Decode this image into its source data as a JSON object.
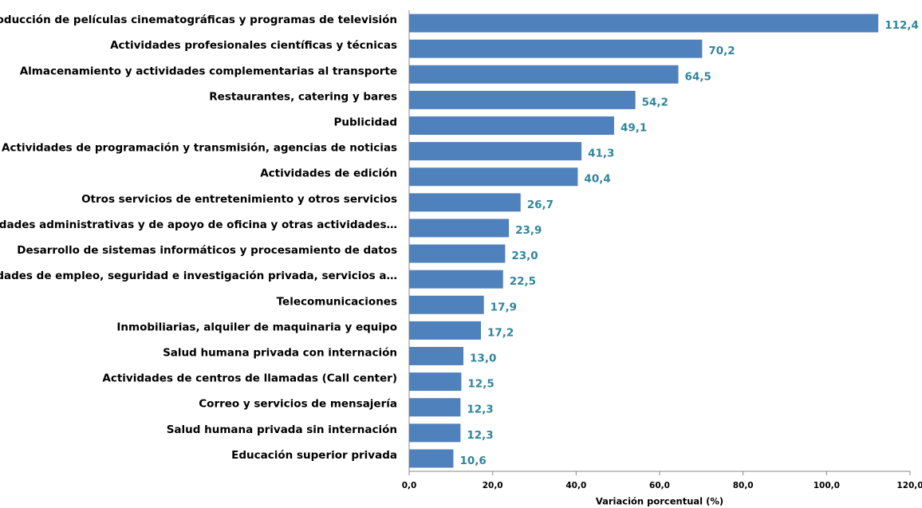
{
  "chart_data": {
    "type": "barh",
    "x_label": "Variación porcentual (%)",
    "categories": [
      "Producción de películas cinematográficas y programas de televisión",
      "Actividades profesionales científicas y técnicas",
      "Almacenamiento y actividades complementarias al transporte",
      "Restaurantes, catering y bares",
      "Publicidad",
      "Actividades de programación y transmisión, agencias de noticias",
      "Actividades de edición",
      "Otros servicios de entretenimiento y otros servicios",
      "Actividades administrativas y de apoyo de oficina y otras actividades…",
      "Desarrollo de sistemas informáticos y procesamiento de datos",
      "Actividades de empleo, seguridad e investigación privada, servicios a…",
      "Telecomunicaciones",
      "Inmobiliarias, alquiler de maquinaria y equipo",
      "Salud humana privada con internación",
      "Actividades de centros de llamadas (Call center)",
      "Correo y servicios de mensajería",
      "Salud humana privada sin internación",
      "Educación superior privada"
    ],
    "values": [
      112.4,
      70.2,
      64.5,
      54.2,
      49.1,
      41.3,
      40.4,
      26.7,
      23.9,
      23.0,
      22.5,
      17.9,
      17.2,
      13.0,
      12.5,
      12.3,
      12.3,
      10.6
    ],
    "value_labels": [
      "112,4",
      "70,2",
      "64,5",
      "54,2",
      "49,1",
      "41,3",
      "40,4",
      "26,7",
      "23,9",
      "23,0",
      "22,5",
      "17,9",
      "17,2",
      "13,0",
      "12,5",
      "12,3",
      "12,3",
      "10,6"
    ],
    "color": "#4f81bd",
    "label_color": "#31859c",
    "xlim": [
      0,
      120
    ],
    "xticks": [
      {
        "value": 0,
        "label": "0,0"
      },
      {
        "value": 20,
        "label": "20,0"
      },
      {
        "value": 40,
        "label": "40,0"
      },
      {
        "value": 60,
        "label": "60,0"
      },
      {
        "value": 80,
        "label": "80,0"
      },
      {
        "value": 100,
        "label": "100,0"
      },
      {
        "value": 120,
        "label": "120,0"
      }
    ],
    "grid": false
  }
}
